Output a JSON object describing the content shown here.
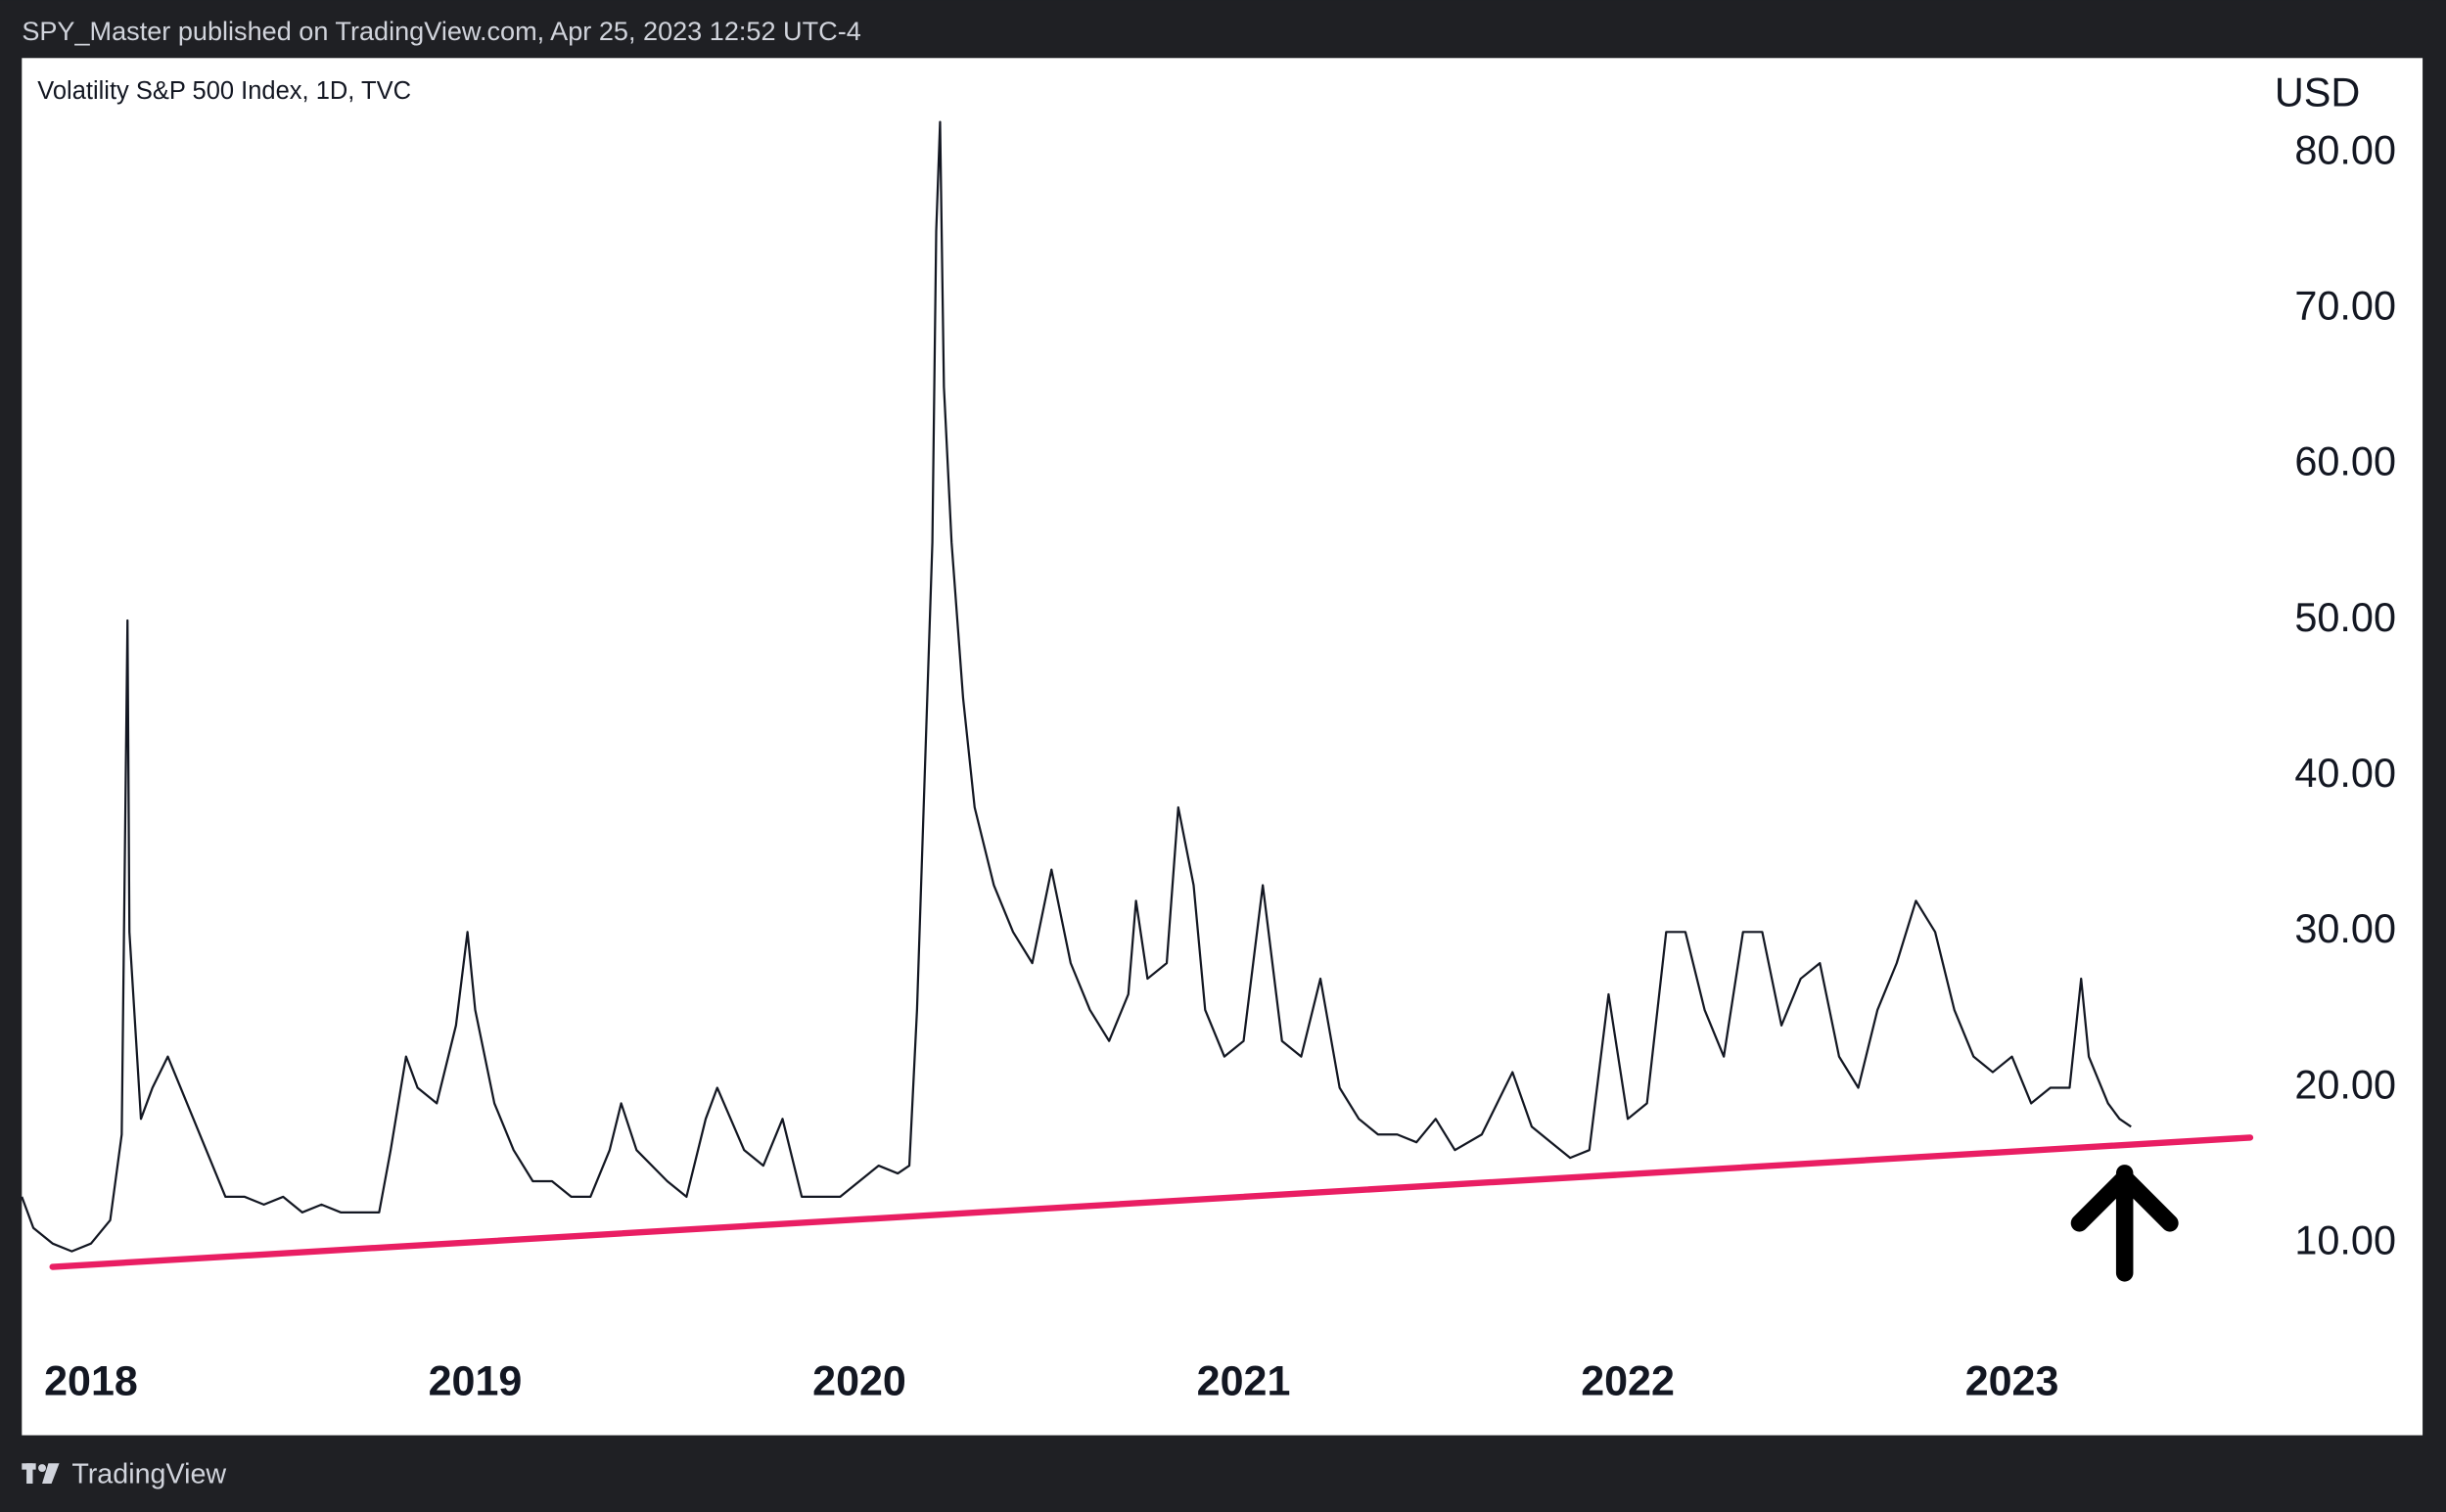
{
  "header": "SPY_Master published on TradingView.com, Apr 25, 2023 12:52 UTC-4",
  "footer": "TradingView",
  "chart_data": {
    "type": "line",
    "title": "Volatility S&P 500 Index, 1D, TVC",
    "y_unit": "USD",
    "color": "#131722",
    "x": [
      2017.82,
      2017.85,
      2017.9,
      2017.95,
      2018.0,
      2018.05,
      2018.08,
      2018.095,
      2018.1,
      2018.13,
      2018.16,
      2018.2,
      2018.25,
      2018.3,
      2018.35,
      2018.4,
      2018.45,
      2018.5,
      2018.55,
      2018.6,
      2018.65,
      2018.7,
      2018.75,
      2018.78,
      2018.82,
      2018.85,
      2018.9,
      2018.95,
      2018.98,
      2019.0,
      2019.05,
      2019.1,
      2019.15,
      2019.2,
      2019.25,
      2019.3,
      2019.35,
      2019.38,
      2019.42,
      2019.5,
      2019.55,
      2019.6,
      2019.63,
      2019.7,
      2019.75,
      2019.8,
      2019.85,
      2019.9,
      2019.95,
      2020.0,
      2020.05,
      2020.1,
      2020.13,
      2020.15,
      2020.17,
      2020.19,
      2020.2,
      2020.21,
      2020.22,
      2020.24,
      2020.27,
      2020.3,
      2020.35,
      2020.4,
      2020.45,
      2020.5,
      2020.55,
      2020.6,
      2020.65,
      2020.7,
      2020.72,
      2020.75,
      2020.8,
      2020.83,
      2020.87,
      2020.9,
      2020.95,
      2021.0,
      2021.05,
      2021.1,
      2021.15,
      2021.2,
      2021.25,
      2021.3,
      2021.35,
      2021.4,
      2021.45,
      2021.5,
      2021.55,
      2021.62,
      2021.66,
      2021.7,
      2021.75,
      2021.8,
      2021.85,
      2021.9,
      2021.95,
      2022.0,
      2022.05,
      2022.1,
      2022.15,
      2022.2,
      2022.25,
      2022.3,
      2022.35,
      2022.4,
      2022.45,
      2022.5,
      2022.55,
      2022.6,
      2022.65,
      2022.7,
      2022.75,
      2022.8,
      2022.85,
      2022.9,
      2022.95,
      2023.0,
      2023.05,
      2023.1,
      2023.15,
      2023.18,
      2023.2,
      2023.25,
      2023.28,
      2023.31
    ],
    "values": [
      13,
      11,
      10,
      9.5,
      10,
      11.5,
      17,
      50,
      30,
      18,
      20,
      22,
      19,
      16,
      13,
      13,
      12.5,
      13,
      12,
      12.5,
      12,
      12,
      12,
      16,
      22,
      20,
      19,
      24,
      30,
      25,
      19,
      16,
      14,
      14,
      13,
      13,
      16,
      19,
      16,
      14,
      13,
      18,
      20,
      16,
      15,
      18,
      13,
      13,
      13,
      14,
      15,
      14.5,
      15,
      25,
      40,
      55,
      75,
      82,
      65,
      55,
      45,
      38,
      33,
      30,
      28,
      34,
      28,
      25,
      23,
      26,
      32,
      27,
      28,
      38,
      33,
      25,
      22,
      23,
      33,
      23,
      22,
      27,
      20,
      18,
      17,
      17,
      16.5,
      18,
      16,
      17,
      19,
      21,
      17.5,
      16.5,
      15.5,
      16,
      26,
      18,
      19,
      30,
      30,
      25,
      22,
      30,
      30,
      24,
      27,
      28,
      22,
      20,
      25,
      28,
      32,
      30,
      25,
      22,
      21,
      22,
      19,
      20,
      20,
      27,
      22,
      19,
      18,
      17.5
    ],
    "trendline": {
      "color": "#e91e63",
      "x": [
        2017.9,
        2023.62
      ],
      "values": [
        8.5,
        16.8
      ]
    },
    "xlim": [
      2017.82,
      2023.61
    ],
    "xticks": [
      2018,
      2019,
      2020,
      2021,
      2022,
      2023
    ],
    "ylim": [
      3.7,
      86.1
    ],
    "yticks": [
      {
        "value": 10,
        "label": "10.00"
      },
      {
        "value": 20,
        "label": "20.00"
      },
      {
        "value": 30,
        "label": "30.00"
      },
      {
        "value": 40,
        "label": "40.00"
      },
      {
        "value": 50,
        "label": "50.00"
      },
      {
        "value": 60,
        "label": "60.00"
      },
      {
        "value": 70,
        "label": "70.00"
      },
      {
        "value": 80,
        "label": "80.00"
      }
    ],
    "grid": false
  }
}
